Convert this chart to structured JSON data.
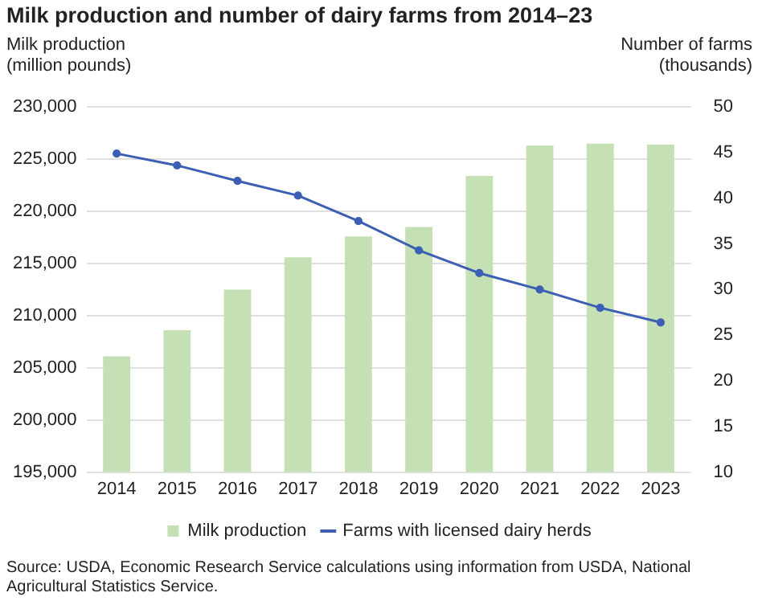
{
  "chart_data": {
    "type": "bar",
    "title": "Milk production and number of dairy farms from 2014–23",
    "ylabel": "Milk production\n(million pounds)",
    "y2label": "Number of farms\n(thousands)",
    "categories": [
      "2014",
      "2015",
      "2016",
      "2017",
      "2018",
      "2019",
      "2020",
      "2021",
      "2022",
      "2023"
    ],
    "series": [
      {
        "name": "Milk production",
        "color": "#c5e0b4",
        "values": [
          206100,
          208600,
          212500,
          215600,
          217600,
          218500,
          223400,
          226300,
          226500,
          226400
        ]
      },
      {
        "name": "Farms with licensed dairy herds",
        "type": "line",
        "axis": "y2",
        "color": "#3c5fb4",
        "marker": "circle",
        "values": [
          44.9,
          43.6,
          41.9,
          40.3,
          37.5,
          34.3,
          31.8,
          30.0,
          28.0,
          26.4
        ]
      }
    ],
    "ylim": [
      195000,
      230000
    ],
    "yticks": [
      {
        "value": 195000,
        "label": "195,000"
      },
      {
        "value": 200000,
        "label": "200,000"
      },
      {
        "value": 205000,
        "label": "205,000"
      },
      {
        "value": 210000,
        "label": "210,000"
      },
      {
        "value": 215000,
        "label": "215,000"
      },
      {
        "value": 220000,
        "label": "220,000"
      },
      {
        "value": 225000,
        "label": "225,000"
      },
      {
        "value": 230000,
        "label": "230,000"
      }
    ],
    "y2lim": [
      10,
      50
    ],
    "y2ticks": [
      10,
      15,
      20,
      25,
      30,
      35,
      40,
      45,
      50
    ],
    "grid": "y",
    "legend": "bottom",
    "annotations": [
      "Source: USDA, Economic Research Service calculations using information from USDA, National Agricultural Statistics Service."
    ]
  }
}
